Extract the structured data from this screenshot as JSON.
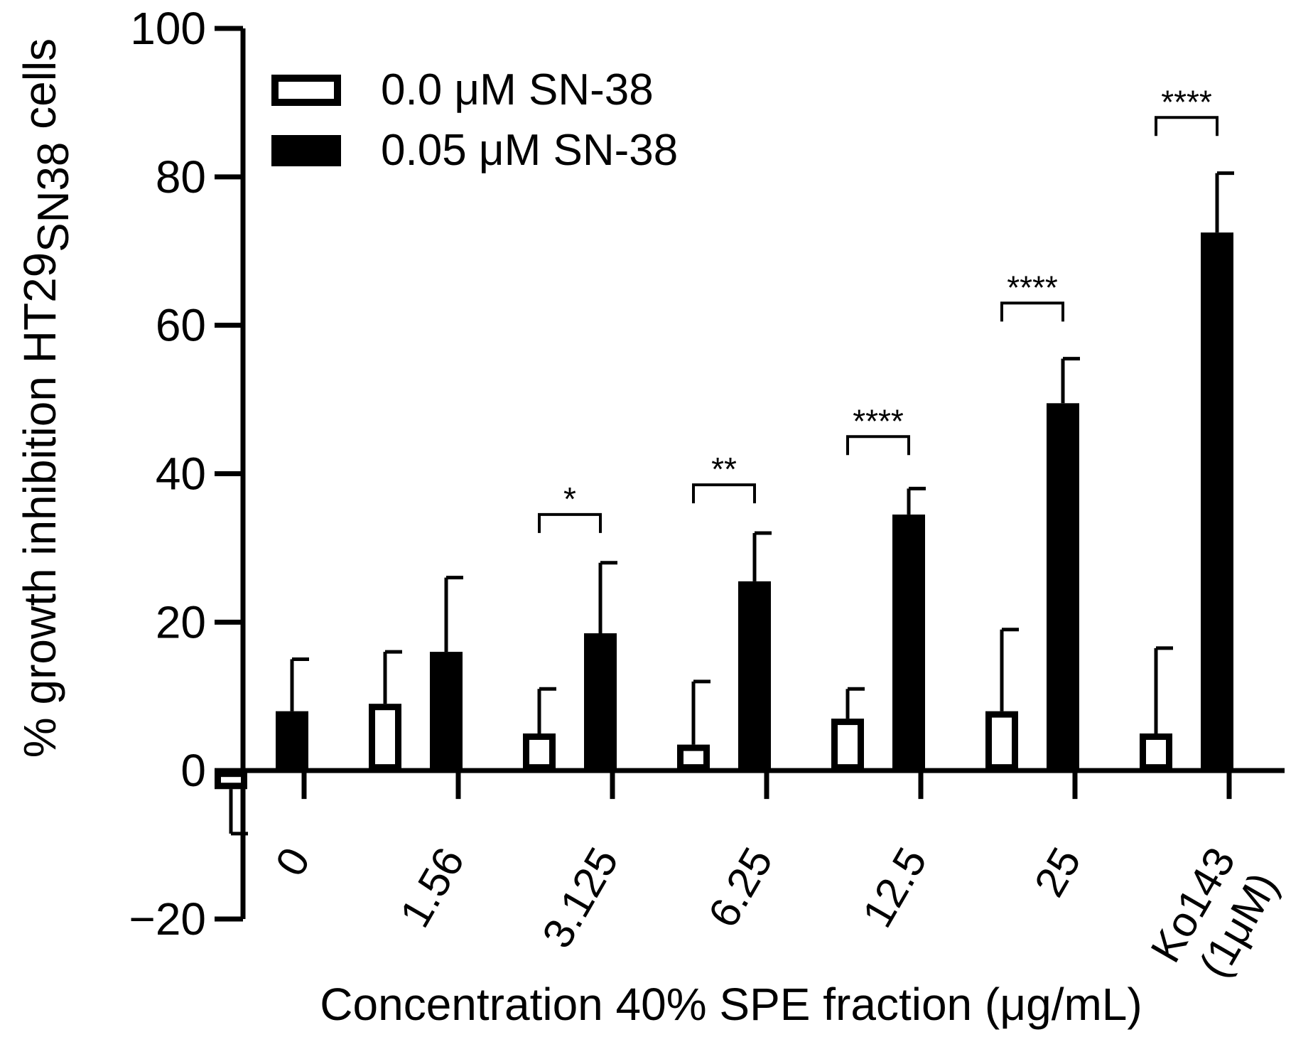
{
  "chart_data": {
    "type": "bar",
    "title": "",
    "ylabel_main": "% growth inhibition HT29",
    "ylabel_sub": "SN38",
    "ylabel_tail": " cells",
    "xlabel": "Concentration 40% SPE fraction (μg/mL)",
    "ylim": [
      -20,
      100
    ],
    "yticks": [
      -20,
      0,
      20,
      40,
      60,
      80,
      100
    ],
    "categories": [
      {
        "lines": [
          "0"
        ]
      },
      {
        "lines": [
          "1.56"
        ]
      },
      {
        "lines": [
          "3.125"
        ]
      },
      {
        "lines": [
          "6.25"
        ]
      },
      {
        "lines": [
          "12.5"
        ]
      },
      {
        "lines": [
          "25"
        ]
      },
      {
        "lines": [
          "Ko143",
          "(1μM)"
        ]
      }
    ],
    "series": [
      {
        "name": "0.0 μM SN-38",
        "fill": "#ffffff",
        "stroke": "#000000",
        "values": [
          -2.5,
          9,
          5,
          3.5,
          7,
          8,
          5
        ],
        "errors": [
          6,
          7,
          6,
          8.5,
          4,
          11,
          11.5
        ]
      },
      {
        "name": "0.05 μM SN-38",
        "fill": "#000000",
        "stroke": "#000000",
        "values": [
          8,
          16,
          18.5,
          25.5,
          34.5,
          49.5,
          72.5
        ],
        "errors": [
          7,
          10,
          9.5,
          6.5,
          3.5,
          6,
          8
        ]
      }
    ],
    "significance": [
      {
        "category": 2,
        "label": "*",
        "y": 34.5
      },
      {
        "category": 3,
        "label": "**",
        "y": 38.5
      },
      {
        "category": 4,
        "label": "****",
        "y": 45
      },
      {
        "category": 5,
        "label": "****",
        "y": 63
      },
      {
        "category": 6,
        "label": "****",
        "y": 88
      }
    ],
    "legend_position": "top-left"
  },
  "colors": {
    "axis": "#000000",
    "background": "#ffffff"
  }
}
